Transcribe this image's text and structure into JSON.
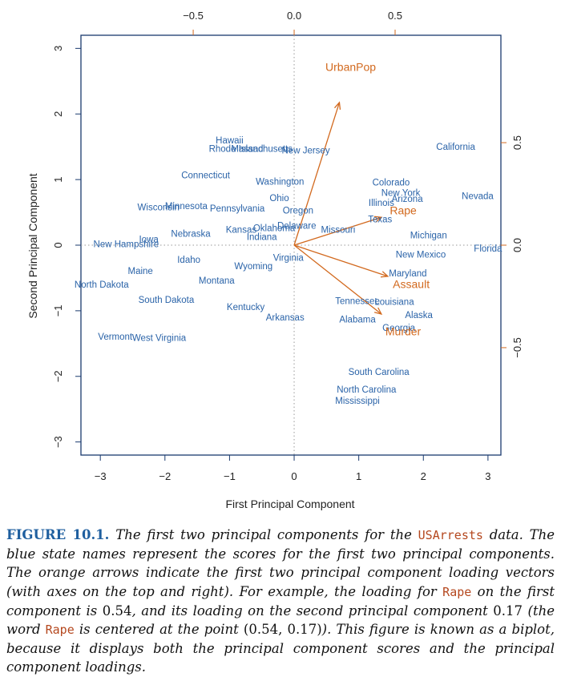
{
  "chart_data": {
    "type": "scatter",
    "xlabel": "First Principal Component",
    "ylabel": "Second Principal Component",
    "xlim": [
      -3.3,
      3.2
    ],
    "ylim": [
      -3.2,
      3.2
    ],
    "x_ticks": [
      -3,
      -2,
      -1,
      0,
      1,
      2,
      3
    ],
    "y_ticks": [
      -3,
      -2,
      -1,
      0,
      1,
      2,
      3
    ],
    "top_ticks": [
      "-0.5",
      "0.0",
      "0.5"
    ],
    "right_ticks": [
      "-0.5",
      "0.0",
      "0.5"
    ],
    "loading_scale": 3.125,
    "states": [
      {
        "name": "Hawaii",
        "x": -1.0,
        "y": 1.6
      },
      {
        "name": "Rhode Island",
        "x": -0.9,
        "y": 1.47
      },
      {
        "name": "Massachusetts",
        "x": -0.5,
        "y": 1.47
      },
      {
        "name": "New Jersey",
        "x": 0.18,
        "y": 1.45
      },
      {
        "name": "California",
        "x": 2.5,
        "y": 1.5
      },
      {
        "name": "Connecticut",
        "x": -1.37,
        "y": 1.07
      },
      {
        "name": "Washington",
        "x": -0.22,
        "y": 0.97
      },
      {
        "name": "Colorado",
        "x": 1.5,
        "y": 0.96
      },
      {
        "name": "New York",
        "x": 1.65,
        "y": 0.8
      },
      {
        "name": "Illinois",
        "x": 1.35,
        "y": 0.65
      },
      {
        "name": "Arizona",
        "x": 1.75,
        "y": 0.71
      },
      {
        "name": "Nevada",
        "x": 2.84,
        "y": 0.75
      },
      {
        "name": "Ohio",
        "x": -0.23,
        "y": 0.72
      },
      {
        "name": "Wisconsin",
        "x": -2.1,
        "y": 0.58
      },
      {
        "name": "Minnesota",
        "x": -1.67,
        "y": 0.6
      },
      {
        "name": "Pennsylvania",
        "x": -0.88,
        "y": 0.56
      },
      {
        "name": "Oregon",
        "x": 0.06,
        "y": 0.53
      },
      {
        "name": "Texas",
        "x": 1.33,
        "y": 0.4
      },
      {
        "name": "Rape",
        "x": 1.69,
        "y": 0.53,
        "kind": "loading"
      },
      {
        "name": "Kansas",
        "x": -0.82,
        "y": 0.24
      },
      {
        "name": "Oklahoma",
        "x": -0.31,
        "y": 0.26
      },
      {
        "name": "Delaware",
        "x": 0.04,
        "y": 0.3
      },
      {
        "name": "Missouri",
        "x": 0.68,
        "y": 0.24
      },
      {
        "name": "Nebraska",
        "x": -1.6,
        "y": 0.18
      },
      {
        "name": "Indiana",
        "x": -0.5,
        "y": 0.13
      },
      {
        "name": "Michigan",
        "x": 2.08,
        "y": 0.15
      },
      {
        "name": "Iowa",
        "x": -2.25,
        "y": 0.09
      },
      {
        "name": "New Hampshire",
        "x": -2.6,
        "y": 0.02
      },
      {
        "name": "Florida",
        "x": 3.0,
        "y": -0.05
      },
      {
        "name": "New Mexico",
        "x": 1.96,
        "y": -0.14
      },
      {
        "name": "Virginia",
        "x": -0.09,
        "y": -0.19
      },
      {
        "name": "Idaho",
        "x": -1.63,
        "y": -0.22
      },
      {
        "name": "Wyoming",
        "x": -0.63,
        "y": -0.32
      },
      {
        "name": "Maine",
        "x": -2.38,
        "y": -0.39
      },
      {
        "name": "Maryland",
        "x": 1.76,
        "y": -0.43
      },
      {
        "name": "Montana",
        "x": -1.2,
        "y": -0.54
      },
      {
        "name": "North Dakota",
        "x": -2.98,
        "y": -0.6
      },
      {
        "name": "South Dakota",
        "x": -1.98,
        "y": -0.83
      },
      {
        "name": "Tennessee",
        "x": 0.98,
        "y": -0.85
      },
      {
        "name": "Louisiana",
        "x": 1.55,
        "y": -0.86
      },
      {
        "name": "Kentucky",
        "x": -0.75,
        "y": -0.94
      },
      {
        "name": "Arkansas",
        "x": -0.14,
        "y": -1.1
      },
      {
        "name": "Alabama",
        "x": 0.98,
        "y": -1.13
      },
      {
        "name": "Alaska",
        "x": 1.93,
        "y": -1.06
      },
      {
        "name": "Georgia",
        "x": 1.62,
        "y": -1.26
      },
      {
        "name": "Vermont",
        "x": -2.77,
        "y": -1.39
      },
      {
        "name": "West Virginia",
        "x": -2.09,
        "y": -1.41
      },
      {
        "name": "South Carolina",
        "x": 1.31,
        "y": -1.93
      },
      {
        "name": "North Carolina",
        "x": 1.12,
        "y": -2.2
      },
      {
        "name": "Mississippi",
        "x": 0.98,
        "y": -2.37
      }
    ],
    "loadings": [
      {
        "name": "UrbanPop",
        "x": 0.28,
        "y": 0.87
      },
      {
        "name": "Rape",
        "x": 0.54,
        "y": 0.17
      },
      {
        "name": "Assault",
        "x": 0.58,
        "y": -0.19
      },
      {
        "name": "Murder",
        "x": 0.54,
        "y": -0.42
      }
    ]
  },
  "caption": {
    "figure_label": "FIGURE 10.1.",
    "p1": " The first two principal components for the ",
    "code1": "USArrests",
    "p2": " data. The blue state names represent the scores for the first two principal components. The orange arrows indicate the first two principal component loading vectors (with axes on the top and right). For example, the loading for ",
    "code2": "Rape",
    "p3": " on the first component is ",
    "n1": "0.54",
    "p4": ", and its loading on the second principal component ",
    "n2": "0.17",
    "p5": " (the word ",
    "code3": "Rape",
    "p6": " is centered at the point ",
    "n3": "(0.54, 0.17)",
    "p7": "). This figure is known as a biplot, because it displays both the principal component scores and the principal component loadings."
  },
  "colors": {
    "states": "#2a63a8",
    "loadings": "#d2691e",
    "axis": "#1a3a6e"
  }
}
